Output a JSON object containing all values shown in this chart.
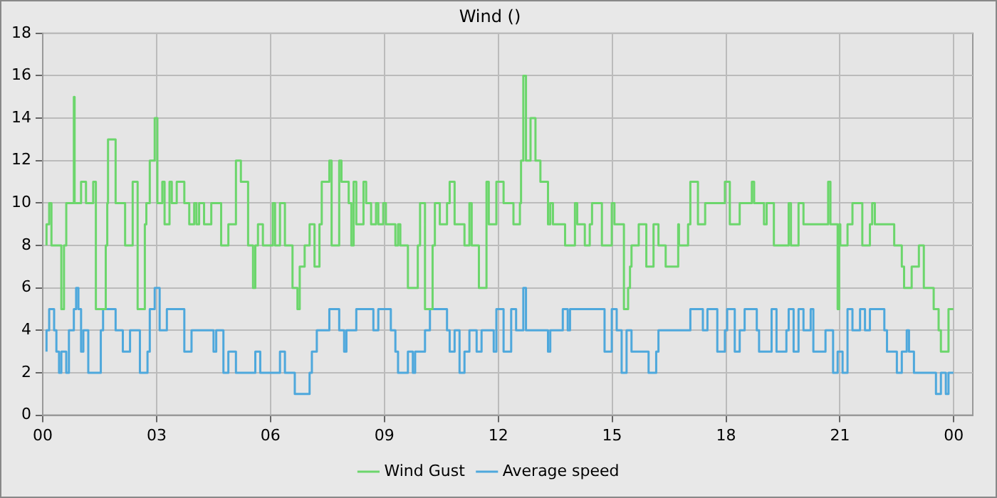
{
  "chart_data": {
    "type": "step",
    "title": "Wind ()",
    "xlim": [
      0,
      24.5
    ],
    "ylim": [
      0,
      18
    ],
    "xticks": [
      {
        "value": 0,
        "label": "00"
      },
      {
        "value": 3,
        "label": "03"
      },
      {
        "value": 6,
        "label": "06"
      },
      {
        "value": 9,
        "label": "09"
      },
      {
        "value": 12,
        "label": "12"
      },
      {
        "value": 15,
        "label": "15"
      },
      {
        "value": 18,
        "label": "18"
      },
      {
        "value": 21,
        "label": "21"
      },
      {
        "value": 24,
        "label": "00"
      }
    ],
    "yticks": [
      0,
      2,
      4,
      6,
      8,
      10,
      12,
      14,
      16,
      18
    ],
    "grid": true,
    "legend": "bottom",
    "marker": "none",
    "line_style": "solid",
    "series": [
      {
        "name": "Wind Gust",
        "color": "#6cd66c",
        "x": [
          0.1,
          0.17,
          0.23,
          0.49,
          0.56,
          0.62,
          0.82,
          0.84,
          1.01,
          1.14,
          1.33,
          1.4,
          1.66,
          1.7,
          1.72,
          1.92,
          2.17,
          2.37,
          2.5,
          2.69,
          2.73,
          2.82,
          2.95,
          3.02,
          3.15,
          3.21,
          3.34,
          3.4,
          3.53,
          3.73,
          3.86,
          3.99,
          4.05,
          4.12,
          4.25,
          4.44,
          4.7,
          4.89,
          5.09,
          5.22,
          5.41,
          5.54,
          5.6,
          5.67,
          5.8,
          5.99,
          6.06,
          6.12,
          6.25,
          6.38,
          6.58,
          6.71,
          6.77,
          6.9,
          7.03,
          7.16,
          7.29,
          7.35,
          7.55,
          7.61,
          7.81,
          7.87,
          8.06,
          8.13,
          8.19,
          8.26,
          8.45,
          8.52,
          8.65,
          8.78,
          8.84,
          8.97,
          9.04,
          9.29,
          9.36,
          9.42,
          9.62,
          9.88,
          9.94,
          10.07,
          10.27,
          10.33,
          10.46,
          10.65,
          10.72,
          10.85,
          11.11,
          11.24,
          11.3,
          11.49,
          11.69,
          11.75,
          11.95,
          12.08,
          12.14,
          12.4,
          12.57,
          12.6,
          12.66,
          12.73,
          12.85,
          12.98,
          13.11,
          13.31,
          13.37,
          13.44,
          13.76,
          14.02,
          14.08,
          14.28,
          14.41,
          14.47,
          14.73,
          14.99,
          15.06,
          15.31,
          15.42,
          15.47,
          15.51,
          15.7,
          15.9,
          16.09,
          16.22,
          16.41,
          16.74,
          16.76,
          17.0,
          17.06,
          17.26,
          17.45,
          17.97,
          18.1,
          18.36,
          18.55,
          18.68,
          18.74,
          19.0,
          19.07,
          19.26,
          19.65,
          19.71,
          19.91,
          20.04,
          20.69,
          20.75,
          20.94,
          20.98,
          21.01,
          21.2,
          21.33,
          21.59,
          21.79,
          21.85,
          21.92,
          22.43,
          22.63,
          22.69,
          22.89,
          23.08,
          23.21,
          23.47,
          23.6,
          23.66,
          23.86,
          23.99
        ],
        "values": [
          8,
          9,
          10,
          8,
          5,
          8,
          10,
          15,
          10,
          11,
          10,
          11,
          5,
          8,
          10,
          13,
          10,
          8,
          11,
          5,
          9,
          10,
          12,
          14,
          10,
          11,
          9,
          11,
          10,
          11,
          10,
          9,
          10,
          9,
          10,
          9,
          10,
          8,
          9,
          12,
          11,
          8,
          6,
          8,
          9,
          8,
          8,
          10,
          8,
          10,
          8,
          6,
          5,
          7,
          8,
          9,
          7,
          9,
          11,
          12,
          8,
          12,
          11,
          10,
          8,
          11,
          9,
          11,
          10,
          9,
          10,
          9,
          10,
          9,
          8,
          9,
          8,
          6,
          8,
          10,
          5,
          8,
          10,
          9,
          10,
          11,
          9,
          8,
          10,
          8,
          6,
          11,
          9,
          11,
          11,
          10,
          9,
          10,
          12,
          16,
          12,
          14,
          12,
          11,
          9,
          10,
          9,
          8,
          10,
          9,
          8,
          9,
          10,
          8,
          10,
          9,
          5,
          6,
          7,
          8,
          9,
          7,
          9,
          8,
          7,
          9,
          8,
          9,
          11,
          9,
          10,
          11,
          9,
          10,
          10,
          11,
          10,
          9,
          10,
          8,
          10,
          8,
          10,
          9,
          11,
          9,
          5,
          9,
          8,
          9,
          10,
          8,
          9,
          10,
          9,
          8,
          7,
          6,
          7,
          8,
          6,
          5,
          4,
          3,
          5
        ]
      },
      {
        "name": "Average speed",
        "color": "#4ea8dc",
        "x": [
          0.1,
          0.17,
          0.3,
          0.36,
          0.43,
          0.49,
          0.62,
          0.69,
          0.82,
          0.88,
          0.94,
          1.01,
          1.07,
          1.2,
          1.53,
          1.59,
          1.92,
          2.11,
          2.3,
          2.56,
          2.76,
          2.82,
          2.95,
          3.08,
          3.27,
          3.73,
          3.92,
          4.5,
          4.57,
          4.76,
          4.89,
          5.09,
          5.6,
          5.73,
          6.25,
          6.38,
          6.64,
          7.03,
          7.09,
          7.22,
          7.55,
          7.81,
          7.94,
          8.0,
          8.26,
          8.71,
          8.84,
          9.17,
          9.29,
          9.36,
          9.62,
          9.75,
          9.81,
          10.07,
          10.2,
          10.65,
          10.72,
          10.85,
          10.98,
          11.11,
          11.24,
          11.43,
          11.56,
          11.88,
          11.95,
          12.14,
          12.34,
          12.47,
          12.66,
          12.73,
          13.31,
          13.37,
          13.7,
          13.83,
          13.89,
          14.8,
          14.99,
          15.12,
          15.25,
          15.38,
          15.51,
          15.96,
          16.16,
          16.22,
          17.06,
          17.39,
          17.51,
          17.77,
          17.97,
          18.03,
          18.23,
          18.36,
          18.49,
          18.81,
          18.87,
          19.2,
          19.33,
          19.59,
          19.65,
          19.78,
          19.91,
          20.04,
          20.23,
          20.3,
          20.62,
          20.82,
          20.94,
          21.07,
          21.2,
          21.33,
          21.53,
          21.66,
          21.79,
          22.17,
          22.24,
          22.5,
          22.63,
          22.76,
          22.82,
          22.95,
          23.53,
          23.66,
          23.79,
          23.86,
          23.99
        ],
        "values": [
          3,
          4,
          5,
          4,
          3,
          2,
          3,
          2,
          4,
          5,
          6,
          5,
          3,
          4,
          2,
          4,
          5,
          4,
          3,
          4,
          2,
          3,
          5,
          6,
          4,
          5,
          3,
          4,
          3,
          4,
          2,
          3,
          2,
          3,
          2,
          3,
          2,
          1,
          2,
          3,
          4,
          5,
          4,
          3,
          4,
          5,
          4,
          5,
          4,
          3,
          2,
          3,
          2,
          3,
          4,
          5,
          4,
          3,
          4,
          2,
          3,
          4,
          3,
          4,
          3,
          5,
          3,
          5,
          4,
          6,
          4,
          3,
          4,
          5,
          4,
          5,
          3,
          5,
          4,
          2,
          4,
          3,
          2,
          3,
          4,
          5,
          4,
          5,
          3,
          4,
          5,
          3,
          4,
          5,
          4,
          3,
          5,
          3,
          4,
          5,
          3,
          5,
          4,
          5,
          3,
          4,
          2,
          3,
          2,
          5,
          4,
          5,
          4,
          5,
          4,
          3,
          2,
          3,
          4,
          3,
          2,
          1,
          2,
          1,
          2
        ]
      }
    ]
  }
}
